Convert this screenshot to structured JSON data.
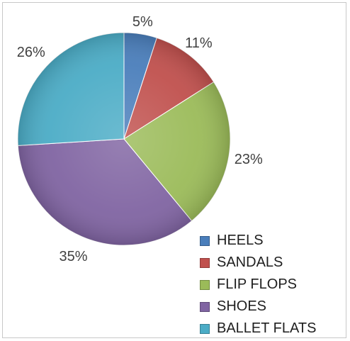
{
  "chart_data": {
    "type": "pie",
    "title": "",
    "legend_position": "bottom-right",
    "categories": [
      "HEELS",
      "SANDALS",
      "FLIP FLOPS",
      "SHOES",
      "BALLET FLATS"
    ],
    "values": [
      5,
      11,
      23,
      35,
      26
    ],
    "labels": [
      "5%",
      "11%",
      "23%",
      "35%",
      "26%"
    ],
    "colors": [
      "#4a7ebb",
      "#c0504d",
      "#9bbb59",
      "#8064a2",
      "#4bacc6"
    ],
    "start_angle_deg": 0,
    "direction": "clockwise"
  }
}
